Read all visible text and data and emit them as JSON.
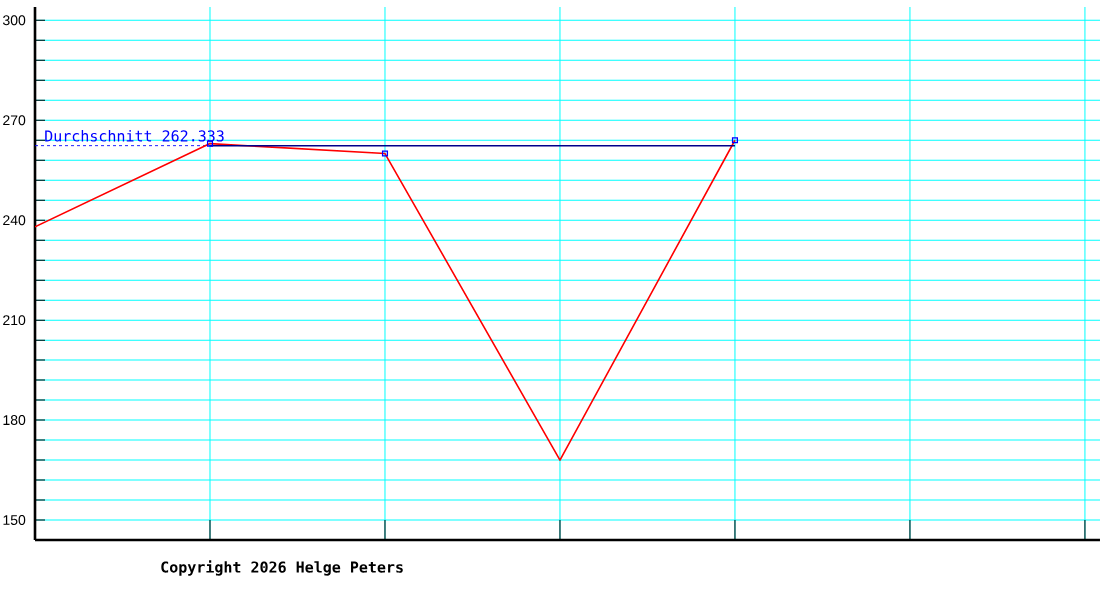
{
  "chart_data": {
    "type": "line",
    "categories": [
      null,
      null,
      null,
      null,
      null,
      null,
      null
    ],
    "series": [
      {
        "color": "#ff0000",
        "values": [
          238,
          263,
          260,
          168,
          264,
          null,
          null
        ]
      },
      {
        "type": "scatter",
        "color": "#0000ff",
        "marker": "square",
        "values": [
          null,
          263,
          260,
          null,
          264,
          null,
          null
        ]
      },
      {
        "color": "#00008b",
        "values": [
          null,
          262.333,
          262.333,
          262.333,
          262.333,
          null,
          null
        ]
      }
    ],
    "ylim": [
      144,
      304
    ],
    "yticks": [
      150,
      {
        "value": 156,
        "label": null
      },
      {
        "value": 162,
        "label": null
      },
      {
        "value": 168,
        "label": null
      },
      {
        "value": 174,
        "label": null
      },
      180,
      {
        "value": 186,
        "label": null
      },
      {
        "value": 192,
        "label": null
      },
      {
        "value": 198,
        "label": null
      },
      {
        "value": 204,
        "label": null
      },
      210,
      {
        "value": 216,
        "label": null
      },
      {
        "value": 222,
        "label": null
      },
      {
        "value": 228,
        "label": null
      },
      {
        "value": 234,
        "label": null
      },
      240,
      {
        "value": 246,
        "label": null
      },
      {
        "value": 252,
        "label": null
      },
      {
        "value": 258,
        "label": null
      },
      {
        "value": 264,
        "label": null
      },
      270,
      {
        "value": 276,
        "label": null
      },
      {
        "value": 282,
        "label": null
      },
      {
        "value": 288,
        "label": null
      },
      {
        "value": 294,
        "label": null
      },
      300
    ],
    "grid": true,
    "tick_labels": "y",
    "ref_lines": [
      {
        "axis": "y",
        "value": 262.333,
        "label": "Durchschnitt 262.333",
        "color": "#0000ff",
        "line_style": "dashed"
      }
    ],
    "annotations": [
      "Copyright 2026 Helge Peters"
    ]
  }
}
